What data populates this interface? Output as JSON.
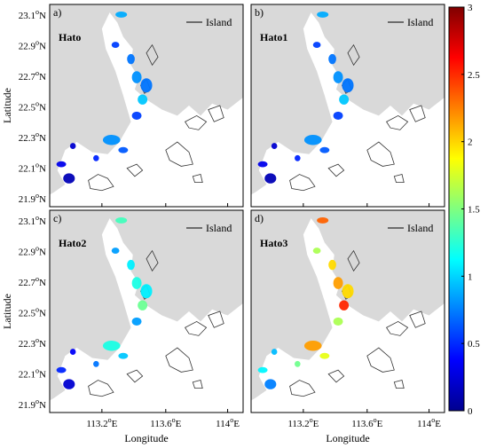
{
  "chart_data": {
    "type": "heatmap",
    "colormap": "jet",
    "colorbar": {
      "min": 0,
      "max": 3,
      "ticks": [
        "0",
        "0.5",
        "1",
        "1.5",
        "2",
        "2.5",
        "3"
      ]
    },
    "xlabel": "Longitude",
    "ylabel": "Latitude",
    "x_ticks": [
      "113.2",
      "113.6",
      "114"
    ],
    "y_ticks": [
      "21.9",
      "22.1",
      "22.3",
      "22.5",
      "22.7",
      "22.9",
      "23.1"
    ],
    "xlim": [
      112.95,
      114.3
    ],
    "ylim": [
      21.82,
      23.2
    ],
    "grid": false,
    "legend": {
      "placement": "top-right",
      "entry": "Island"
    },
    "panels": [
      {
        "letter": "a)",
        "title": "Hato",
        "level": "low"
      },
      {
        "letter": "b)",
        "title": "Hato1",
        "level": "low"
      },
      {
        "letter": "c)",
        "title": "Hato2",
        "level": "medium"
      },
      {
        "letter": "d)",
        "title": "Hato3",
        "level": "high"
      }
    ]
  },
  "labels": {
    "x_axis": "Longitude",
    "y_axis": "Latitude",
    "x_tick_1": "113.2",
    "x_tick_2": "113.6",
    "x_tick_3": "114",
    "x_unit": "E",
    "y_unit": "N",
    "degree": "o",
    "legend_entry": "Island"
  },
  "colors": {
    "land": "#d9d9d9",
    "sea": "#ffffff",
    "island_outline": "#333333"
  }
}
